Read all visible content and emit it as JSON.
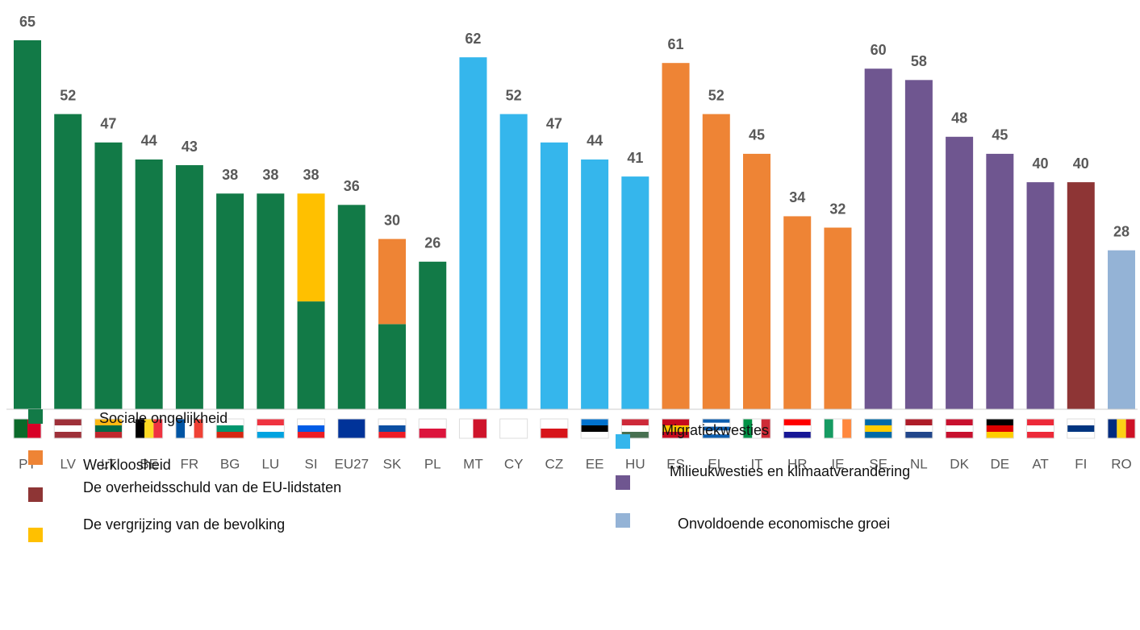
{
  "chart_data": {
    "type": "bar",
    "categories": [
      "PT",
      "LV",
      "LT",
      "BE",
      "FR",
      "BG",
      "LU",
      "SI",
      "EU27",
      "SK",
      "PL",
      "MT",
      "CY",
      "CZ",
      "EE",
      "HU",
      "ES",
      "EL",
      "IT",
      "HR",
      "IE",
      "SE",
      "NL",
      "DK",
      "DE",
      "AT",
      "FI",
      "RO"
    ],
    "values": [
      65,
      52,
      47,
      44,
      43,
      38,
      38,
      38,
      36,
      30,
      26,
      62,
      52,
      47,
      44,
      41,
      61,
      52,
      45,
      34,
      32,
      60,
      58,
      48,
      45,
      40,
      40,
      28
    ],
    "bar_colors": [
      [
        "#127a47"
      ],
      [
        "#127a47"
      ],
      [
        "#127a47"
      ],
      [
        "#127a47"
      ],
      [
        "#127a47"
      ],
      [
        "#127a47"
      ],
      [
        "#127a47"
      ],
      [
        "#127a47",
        "#ffc000"
      ],
      [
        "#127a47"
      ],
      [
        "#127a47",
        "#ee8435"
      ],
      [
        "#127a47"
      ],
      [
        "#35b6ec"
      ],
      [
        "#35b6ec"
      ],
      [
        "#35b6ec"
      ],
      [
        "#35b6ec"
      ],
      [
        "#35b6ec"
      ],
      [
        "#ee8435"
      ],
      [
        "#ee8435"
      ],
      [
        "#ee8435"
      ],
      [
        "#ee8435"
      ],
      [
        "#ee8435"
      ],
      [
        "#6f5690"
      ],
      [
        "#6f5690"
      ],
      [
        "#6f5690"
      ],
      [
        "#6f5690"
      ],
      [
        "#6f5690"
      ],
      [
        "#8e3535"
      ],
      [
        "#94b3d6"
      ]
    ],
    "ylim": [
      0,
      65
    ],
    "legend": [
      {
        "name": "Sociale ongelijkheid",
        "color": "#127a47"
      },
      {
        "name": "Werkloosheid",
        "color": "#ee8435"
      },
      {
        "name": "De overheidsschuld van de EU-lidstaten",
        "color": "#8e3535"
      },
      {
        "name": "De vergrijzing van de bevolking",
        "color": "#ffc000"
      },
      {
        "name": "Migratiekwesties",
        "color": "#35b6ec"
      },
      {
        "name": "Milieukwesties en klimaatverandering",
        "color": "#6f5690"
      },
      {
        "name": "Onvoldoende economische groei",
        "color": "#94b3d6"
      }
    ]
  }
}
